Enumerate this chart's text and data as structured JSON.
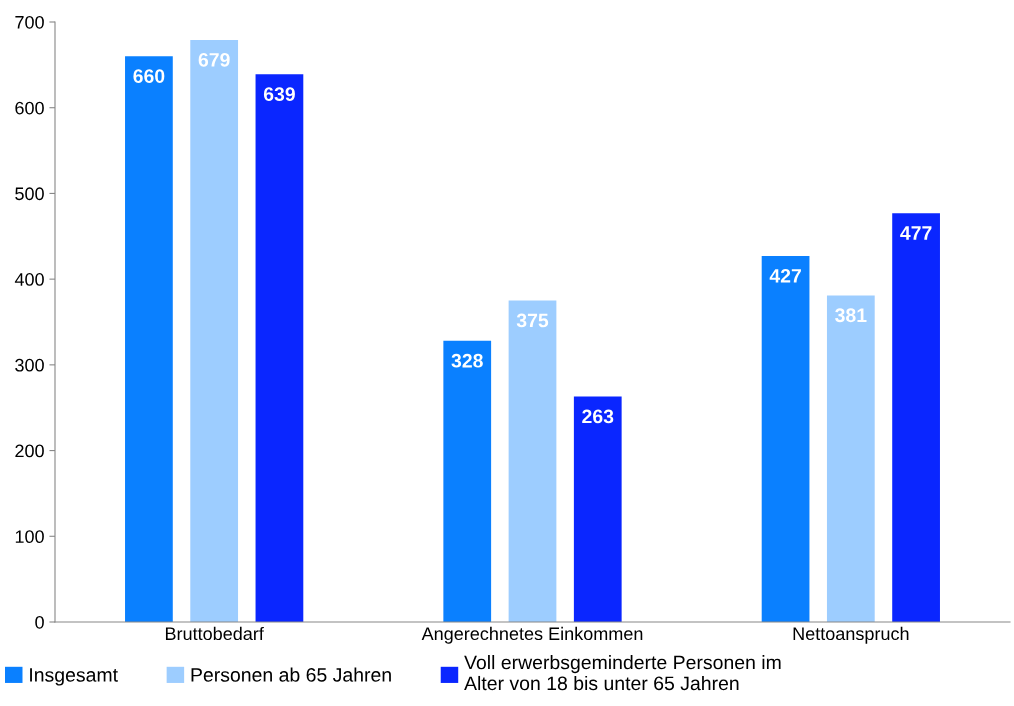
{
  "chart_data": {
    "type": "bar",
    "categories": [
      "Bruttobedarf",
      "Angerechnetes Einkommen",
      "Nettoanspruch"
    ],
    "series": [
      {
        "name": "Insgesamt",
        "color": "#0a80ff",
        "values": [
          660,
          328,
          427
        ]
      },
      {
        "name": "Personen ab 65 Jahren",
        "color": "#9dcdff",
        "values": [
          679,
          375,
          381
        ]
      },
      {
        "name": "Voll erwerbsgeminderte Personen im\nAlter von 18 bis unter 65 Jahren",
        "color": "#0a26ff",
        "values": [
          639,
          263,
          477
        ]
      }
    ],
    "ylim": [
      0,
      700
    ],
    "yticks": [
      0,
      100,
      200,
      300,
      400,
      500,
      600,
      700
    ],
    "grid": false,
    "legend": "bottom left",
    "data_labels": true
  }
}
